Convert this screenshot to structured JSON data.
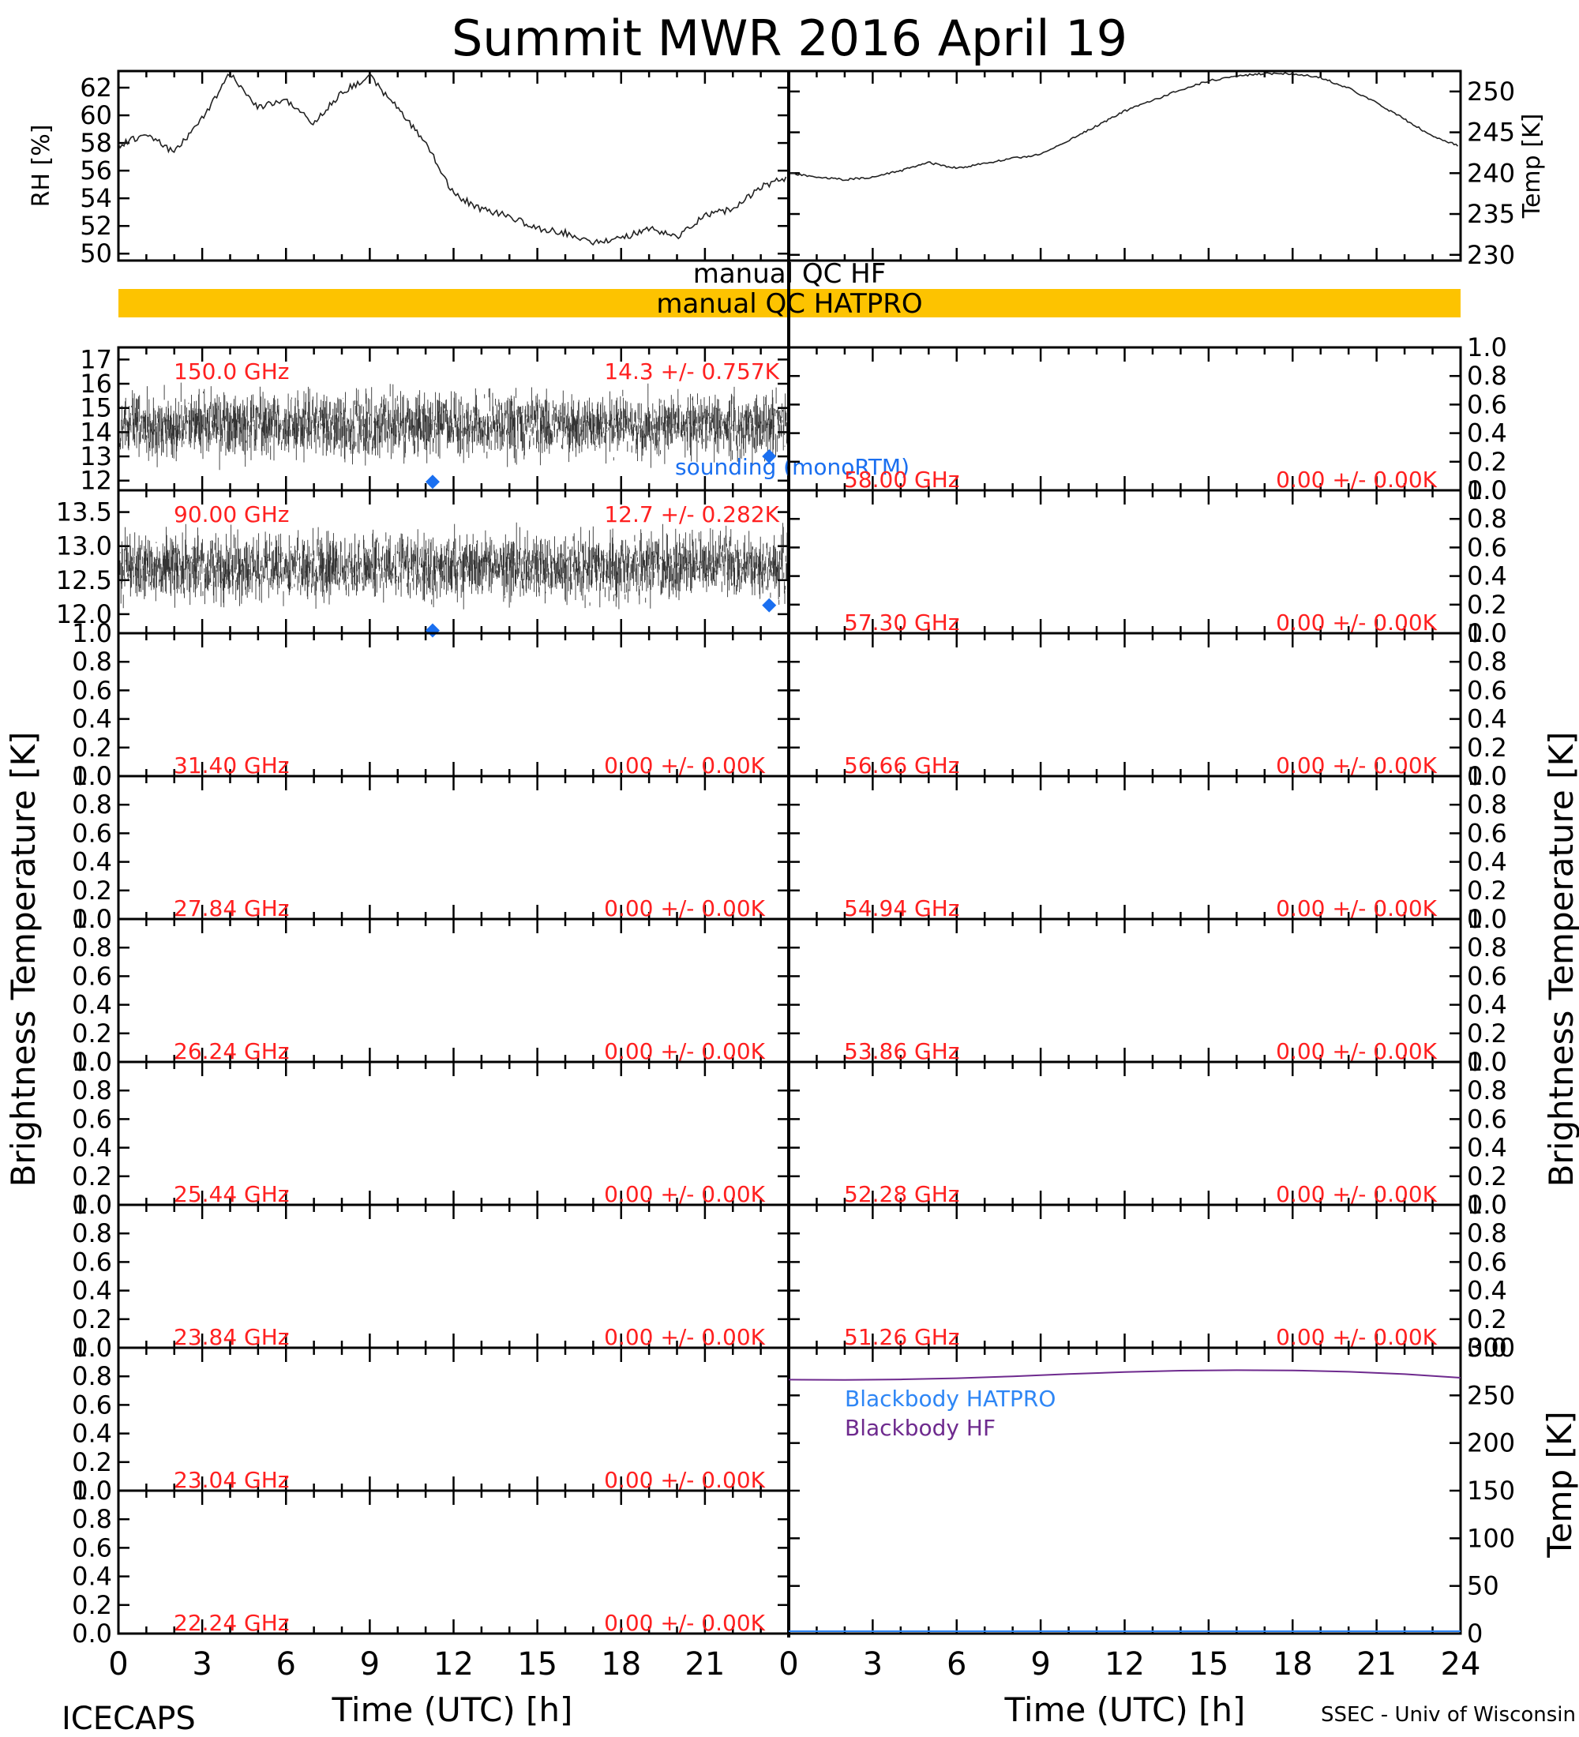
{
  "title": "Summit MWR 2016 April 19",
  "footer": {
    "left": "ICECAPS",
    "right": "SSEC - Univ of Wisconsin"
  },
  "colors": {
    "axis": "#000000",
    "channel_label": "#ff2020",
    "sounding": "#1a6ff0",
    "qc_bar": "#fdc300",
    "blackbody_hatpro": "#2e86f5",
    "blackbody_hf": "#6e2a8e"
  },
  "qc": {
    "hf_label": "manual QC HF",
    "hatpro_label": "manual QC HATPRO"
  },
  "y_labels": {
    "left_brightness": "Brightness Temperature [K]",
    "right_brightness": "Brightness Temperature [K]"
  },
  "chart_data": [
    {
      "type": "line",
      "id": "rh",
      "ylabel": "RH [%]",
      "xlim": [
        0,
        24
      ],
      "ylim": [
        49.5,
        63.2
      ],
      "yticks": [
        50,
        52,
        54,
        56,
        58,
        60,
        62
      ],
      "x": [
        0,
        1,
        2,
        3,
        4,
        5,
        6,
        7,
        8,
        9,
        10,
        11,
        12,
        13,
        14,
        15,
        16,
        17,
        18,
        19,
        20,
        21,
        22,
        23,
        23.9
      ],
      "y": [
        57.8,
        58.7,
        57.3,
        59.8,
        63,
        60.6,
        61.1,
        59.4,
        61.7,
        62.8,
        60.5,
        58,
        54.3,
        53.2,
        52.7,
        51.8,
        51.5,
        50.8,
        51.1,
        51.8,
        51.2,
        52.8,
        53.2,
        54.8,
        55.5
      ]
    },
    {
      "type": "line",
      "id": "temp",
      "ylabel": "Temp [K]",
      "xlim": [
        0,
        24
      ],
      "ylim": [
        229.3,
        252.5
      ],
      "yticks": [
        230,
        235,
        240,
        245,
        250
      ],
      "x": [
        0,
        1,
        2,
        3,
        4,
        5,
        6,
        7,
        8,
        9,
        10,
        11,
        12,
        13,
        14,
        15,
        16,
        17,
        18,
        19,
        20,
        21,
        22,
        23,
        23.9
      ],
      "y": [
        240,
        239.5,
        239.2,
        239.5,
        240.3,
        241.3,
        240.6,
        241.2,
        241.8,
        242.3,
        244,
        245.8,
        247.6,
        248.9,
        250.2,
        251.3,
        251.9,
        252.2,
        252.2,
        251.7,
        250.4,
        248.6,
        246.6,
        244.5,
        243.4
      ]
    },
    {
      "type": "scatter",
      "id": "ch-150",
      "channel": "150.0 GHz",
      "stats": "14.3 +/- 0.757K",
      "ylim": [
        11.6,
        17.5
      ],
      "yticks": [
        12,
        13,
        14,
        15,
        16,
        17
      ],
      "series": [
        {
          "name": "sounding (monoRTM)",
          "x": [
            11.25,
            23.3
          ],
          "y": [
            11.95,
            13.0
          ]
        }
      ],
      "noise_mean": 14.3,
      "noise_std": 0.757
    },
    {
      "type": "scatter",
      "id": "ch-90",
      "channel": "90.00 GHz",
      "stats": "12.7 +/- 0.282K",
      "ylim": [
        11.72,
        13.82
      ],
      "yticks": [
        12.0,
        12.5,
        13.0,
        13.5
      ],
      "series": [
        {
          "x": [
            11.25,
            23.3
          ],
          "y": [
            11.76,
            12.13
          ]
        }
      ],
      "noise_mean": 12.7,
      "noise_std": 0.282
    },
    {
      "type": "line",
      "id": "ch-31.40",
      "channel": "31.40 GHz",
      "stats": "0.00 +/- 0.00K",
      "ylim": [
        0,
        1
      ],
      "yticks": [
        0.0,
        0.2,
        0.4,
        0.6,
        0.8,
        1.0
      ]
    },
    {
      "type": "line",
      "id": "ch-27.84",
      "channel": "27.84 GHz",
      "stats": "0.00 +/- 0.00K",
      "ylim": [
        0,
        1
      ],
      "yticks": [
        0.0,
        0.2,
        0.4,
        0.6,
        0.8,
        1.0
      ]
    },
    {
      "type": "line",
      "id": "ch-26.24",
      "channel": "26.24 GHz",
      "stats": "0.00 +/- 0.00K",
      "ylim": [
        0,
        1
      ],
      "yticks": [
        0.0,
        0.2,
        0.4,
        0.6,
        0.8,
        1.0
      ]
    },
    {
      "type": "line",
      "id": "ch-25.44",
      "channel": "25.44 GHz",
      "stats": "0.00 +/- 0.00K",
      "ylim": [
        0,
        1
      ],
      "yticks": [
        0.0,
        0.2,
        0.4,
        0.6,
        0.8,
        1.0
      ]
    },
    {
      "type": "line",
      "id": "ch-23.84",
      "channel": "23.84 GHz",
      "stats": "0.00 +/- 0.00K",
      "ylim": [
        0,
        1
      ],
      "yticks": [
        0.0,
        0.2,
        0.4,
        0.6,
        0.8,
        1.0
      ]
    },
    {
      "type": "line",
      "id": "ch-23.04",
      "channel": "23.04 GHz",
      "stats": "0.00 +/- 0.00K",
      "ylim": [
        0,
        1
      ],
      "yticks": [
        0.0,
        0.2,
        0.4,
        0.6,
        0.8,
        1.0
      ]
    },
    {
      "type": "line",
      "id": "ch-22.24",
      "channel": "22.24 GHz",
      "stats": "0.00 +/- 0.00K",
      "ylim": [
        0,
        1
      ],
      "yticks": [
        0.0,
        0.2,
        0.4,
        0.6,
        0.8,
        1.0
      ]
    },
    {
      "type": "line",
      "id": "ch-58.00",
      "channel": "58.00 GHz",
      "stats": "0.00 +/- 0.00K",
      "ylim": [
        0,
        1
      ],
      "yticks": [
        0.0,
        0.2,
        0.4,
        0.6,
        0.8,
        1.0
      ]
    },
    {
      "type": "line",
      "id": "ch-57.30",
      "channel": "57.30 GHz",
      "stats": "0.00 +/- 0.00K",
      "ylim": [
        0,
        1
      ],
      "yticks": [
        0.0,
        0.2,
        0.4,
        0.6,
        0.8,
        1.0
      ]
    },
    {
      "type": "line",
      "id": "ch-56.66",
      "channel": "56.66 GHz",
      "stats": "0.00 +/- 0.00K",
      "ylim": [
        0,
        1
      ],
      "yticks": [
        0.0,
        0.2,
        0.4,
        0.6,
        0.8,
        1.0
      ]
    },
    {
      "type": "line",
      "id": "ch-54.94",
      "channel": "54.94 GHz",
      "stats": "0.00 +/- 0.00K",
      "ylim": [
        0,
        1
      ],
      "yticks": [
        0.0,
        0.2,
        0.4,
        0.6,
        0.8,
        1.0
      ]
    },
    {
      "type": "line",
      "id": "ch-53.86",
      "channel": "53.86 GHz",
      "stats": "0.00 +/- 0.00K",
      "ylim": [
        0,
        1
      ],
      "yticks": [
        0.0,
        0.2,
        0.4,
        0.6,
        0.8,
        1.0
      ]
    },
    {
      "type": "line",
      "id": "ch-52.28",
      "channel": "52.28 GHz",
      "stats": "0.00 +/- 0.00K",
      "ylim": [
        0,
        1
      ],
      "yticks": [
        0.0,
        0.2,
        0.4,
        0.6,
        0.8,
        1.0
      ]
    },
    {
      "type": "line",
      "id": "ch-51.26",
      "channel": "51.26 GHz",
      "stats": "0.00 +/- 0.00K",
      "ylim": [
        0,
        1
      ],
      "yticks": [
        0.0,
        0.2,
        0.4,
        0.6,
        0.8,
        1.0
      ]
    },
    {
      "type": "line",
      "id": "blackbody",
      "ylabel": "Temp [K]",
      "xlim": [
        0,
        24
      ],
      "ylim": [
        0,
        300
      ],
      "yticks": [
        0,
        50,
        100,
        150,
        200,
        250,
        300
      ],
      "series": [
        {
          "name": "Blackbody HATPRO",
          "x": [
            0,
            24
          ],
          "y": [
            0,
            0
          ]
        },
        {
          "name": "Blackbody HF",
          "x": [
            0,
            2,
            4,
            6,
            8,
            10,
            12,
            14,
            16,
            18,
            20,
            22,
            24
          ],
          "y": [
            266.5,
            266.3,
            266.8,
            268,
            270,
            272.5,
            274.5,
            276,
            276.5,
            276.2,
            274.8,
            272.3,
            268.5
          ]
        }
      ]
    }
  ],
  "x_axis": {
    "label": "Time (UTC) [h]",
    "ticks": [
      "0",
      "3",
      "6",
      "9",
      "12",
      "15",
      "18",
      "21"
    ],
    "ticks_right": [
      "0",
      "3",
      "6",
      "9",
      "12",
      "15",
      "18",
      "21",
      "24"
    ]
  }
}
